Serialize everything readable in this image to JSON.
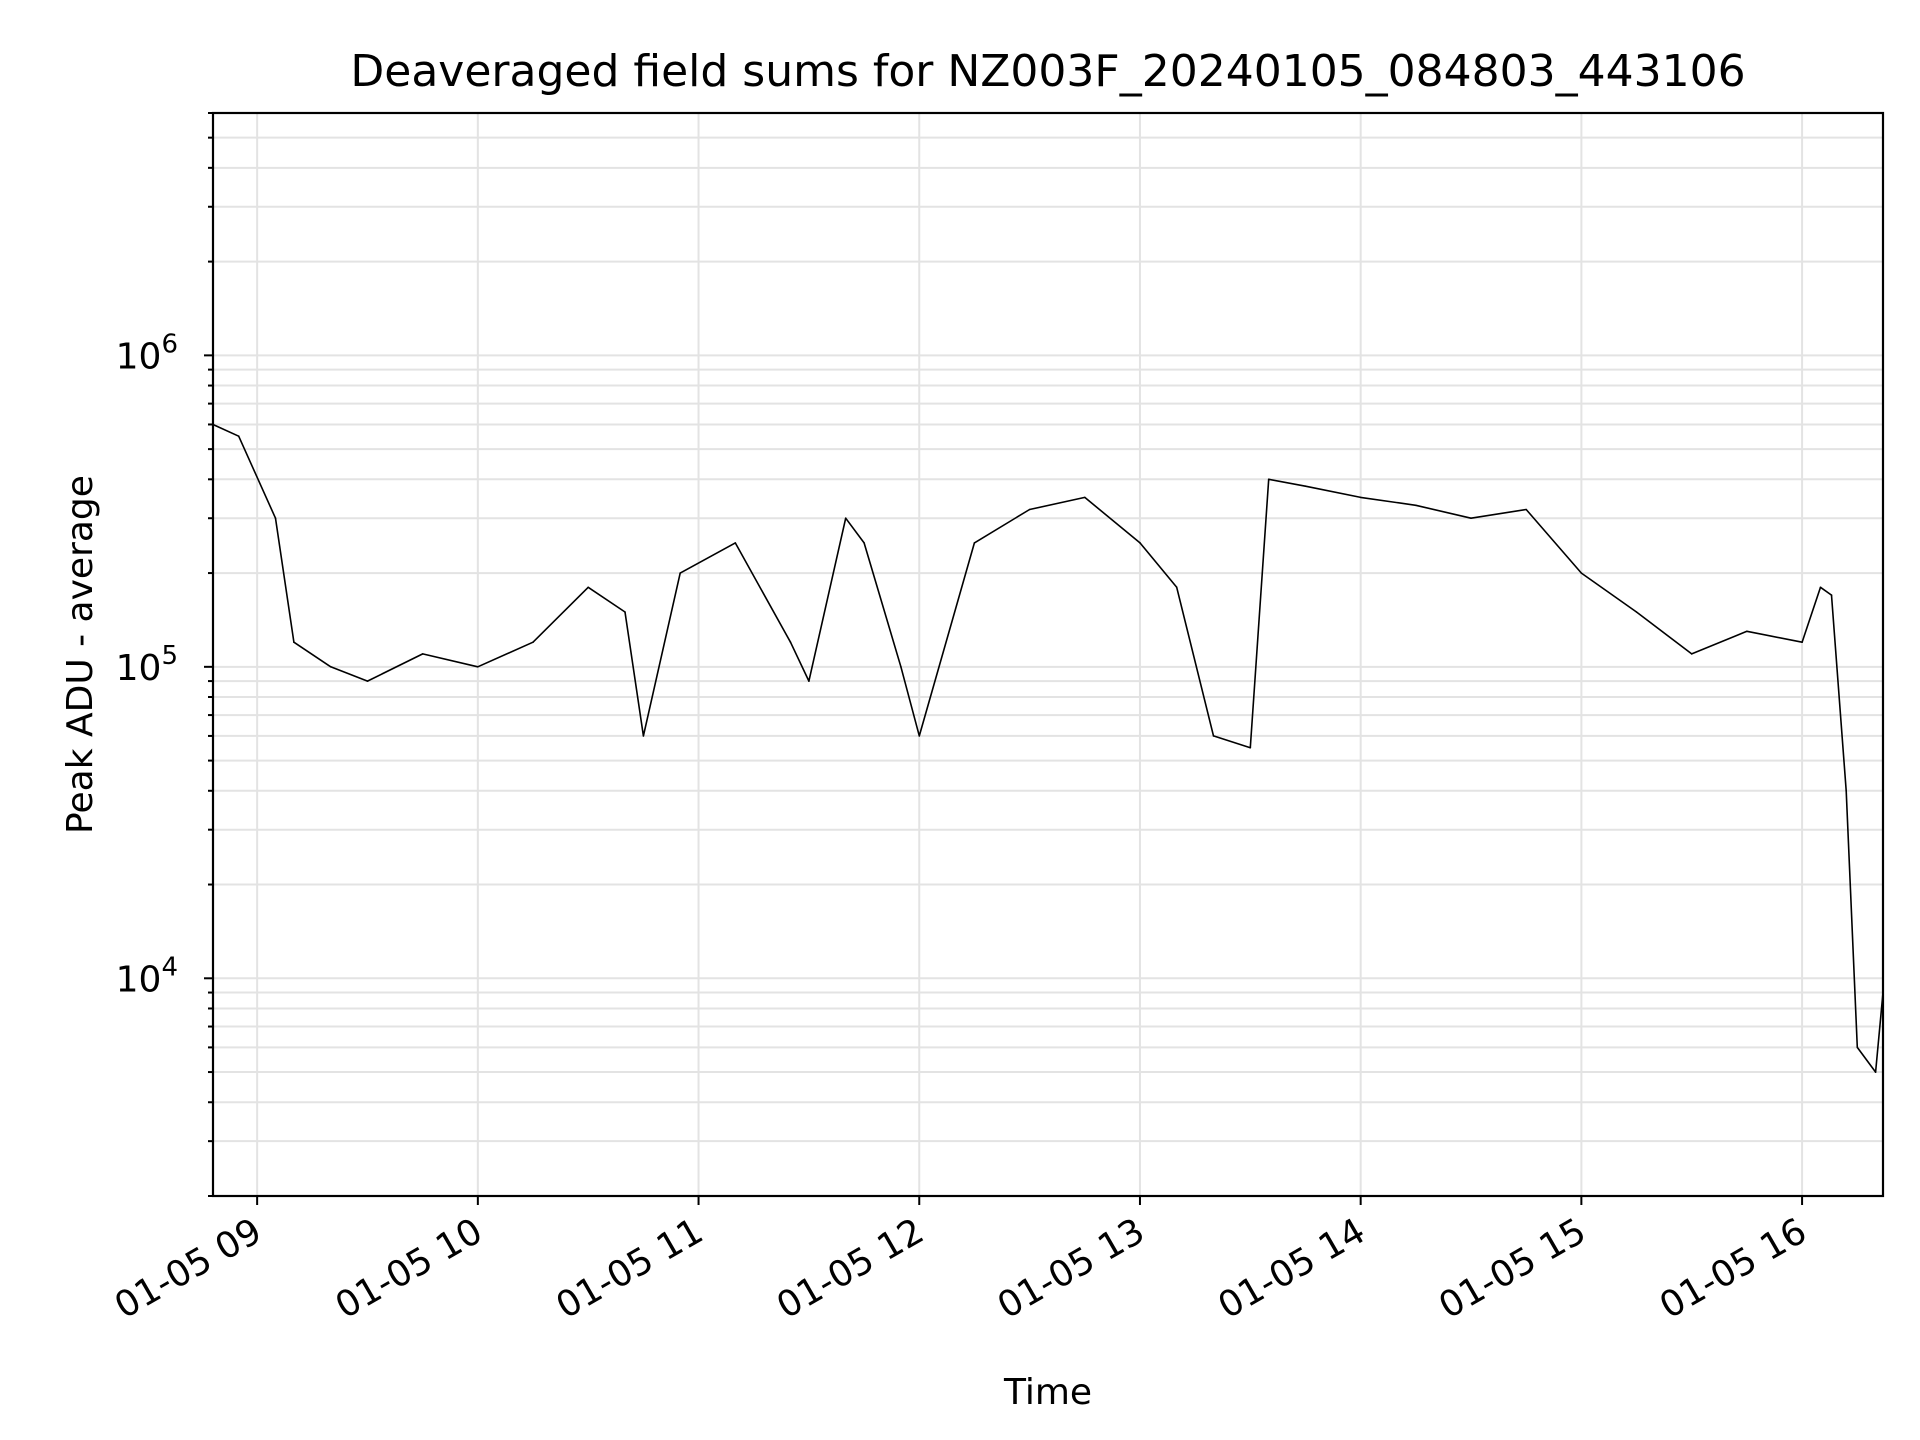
{
  "chart_data": {
    "type": "line",
    "title": "Deaveraged field sums for NZ003F_20240105_084803_443106",
    "xlabel": "Time",
    "ylabel": "Peak ADU - average",
    "yscale": "log",
    "ylim": [
      2000,
      6000000
    ],
    "xlim": [
      "2024-01-05 08:48",
      "2024-01-05 16:22"
    ],
    "grid": true,
    "x_tick_labels": [
      "01-05 09",
      "01-05 10",
      "01-05 11",
      "01-05 12",
      "01-05 13",
      "01-05 14",
      "01-05 15",
      "01-05 16"
    ],
    "x_ticks": [
      "2024-01-05 09:00",
      "2024-01-05 10:00",
      "2024-01-05 11:00",
      "2024-01-05 12:00",
      "2024-01-05 13:00",
      "2024-01-05 14:00",
      "2024-01-05 15:00",
      "2024-01-05 16:00"
    ],
    "y_tick_labels": [
      {
        "base": "10",
        "exp": "4",
        "value": 10000
      },
      {
        "base": "10",
        "exp": "5",
        "value": 100000
      },
      {
        "base": "10",
        "exp": "6",
        "value": 1000000
      }
    ],
    "series": [
      {
        "color": "#000000",
        "x": [
          "2024-01-05 08:48",
          "2024-01-05 08:55",
          "2024-01-05 09:05",
          "2024-01-05 09:10",
          "2024-01-05 09:20",
          "2024-01-05 09:30",
          "2024-01-05 09:45",
          "2024-01-05 10:00",
          "2024-01-05 10:15",
          "2024-01-05 10:30",
          "2024-01-05 10:40",
          "2024-01-05 10:45",
          "2024-01-05 10:55",
          "2024-01-05 11:10",
          "2024-01-05 11:25",
          "2024-01-05 11:30",
          "2024-01-05 11:40",
          "2024-01-05 11:45",
          "2024-01-05 11:55",
          "2024-01-05 12:00",
          "2024-01-05 12:15",
          "2024-01-05 12:30",
          "2024-01-05 12:45",
          "2024-01-05 13:00",
          "2024-01-05 13:10",
          "2024-01-05 13:20",
          "2024-01-05 13:30",
          "2024-01-05 13:35",
          "2024-01-05 13:45",
          "2024-01-05 14:00",
          "2024-01-05 14:15",
          "2024-01-05 14:30",
          "2024-01-05 14:45",
          "2024-01-05 15:00",
          "2024-01-05 15:15",
          "2024-01-05 15:30",
          "2024-01-05 15:45",
          "2024-01-05 16:00",
          "2024-01-05 16:05",
          "2024-01-05 16:08",
          "2024-01-05 16:12",
          "2024-01-05 16:15",
          "2024-01-05 16:20",
          "2024-01-05 16:22"
        ],
        "y": [
          600000,
          550000,
          300000,
          120000,
          100000,
          90000,
          110000,
          100000,
          120000,
          180000,
          150000,
          60000,
          200000,
          250000,
          120000,
          90000,
          300000,
          250000,
          100000,
          60000,
          250000,
          320000,
          350000,
          250000,
          180000,
          60000,
          55000,
          400000,
          380000,
          350000,
          330000,
          300000,
          320000,
          200000,
          150000,
          110000,
          130000,
          120000,
          180000,
          170000,
          40000,
          6000,
          5000,
          9000
        ]
      }
    ]
  }
}
